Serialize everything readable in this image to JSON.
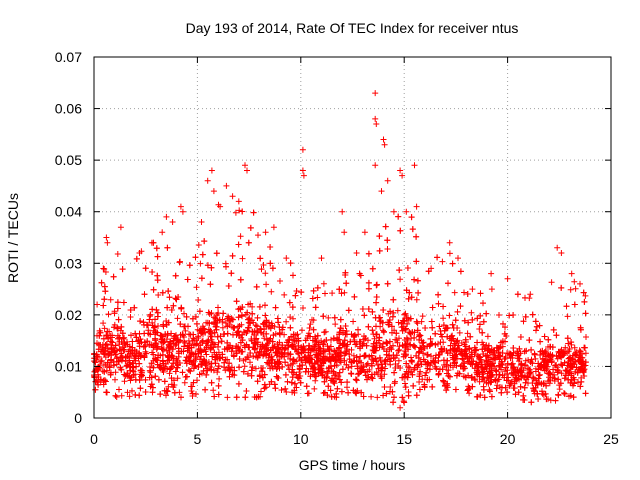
{
  "chart_data": {
    "type": "scatter",
    "title": "Day 193 of 2014, Rate Of TEC Index for receiver ntus",
    "xlabel": "GPS time / hours",
    "ylabel": "ROTI / TECUs",
    "xlim": [
      0,
      25
    ],
    "ylim": [
      0,
      0.07
    ],
    "x_ticks": [
      0,
      5,
      10,
      15,
      20,
      25
    ],
    "x_tick_labels": [
      "0",
      "5",
      "10",
      "15",
      "20",
      "25"
    ],
    "y_ticks": [
      0,
      0.01,
      0.02,
      0.03,
      0.04,
      0.05,
      0.06,
      0.07
    ],
    "y_tick_labels": [
      "0",
      "0.01",
      "0.02",
      "0.03",
      "0.04",
      "0.05",
      "0.06",
      "0.07"
    ],
    "grid": true,
    "marker": "+",
    "color": "#ff0000",
    "x_range_of_data": [
      0.0,
      23.8
    ],
    "envelope": {
      "x": [
        0,
        0.5,
        1,
        1.5,
        2,
        2.5,
        3,
        3.5,
        4,
        4.5,
        5,
        5.5,
        6,
        6.5,
        7,
        7.5,
        8,
        8.5,
        9,
        9.5,
        10,
        10.5,
        11,
        11.5,
        12,
        12.5,
        13,
        13.5,
        14,
        14.5,
        15,
        15.5,
        16,
        16.5,
        17,
        17.5,
        18,
        18.5,
        19,
        19.5,
        20,
        20.5,
        21,
        21.5,
        22,
        22.5,
        23,
        23.5,
        23.8
      ],
      "low": [
        0.005,
        0.005,
        0.004,
        0.004,
        0.004,
        0.005,
        0.005,
        0.004,
        0.004,
        0.004,
        0.004,
        0.004,
        0.004,
        0.004,
        0.004,
        0.004,
        0.004,
        0.005,
        0.005,
        0.005,
        0.004,
        0.005,
        0.005,
        0.004,
        0.003,
        0.004,
        0.004,
        0.004,
        0.003,
        0.003,
        0.002,
        0.004,
        0.004,
        0.005,
        0.005,
        0.005,
        0.005,
        0.004,
        0.004,
        0.004,
        0.004,
        0.004,
        0.003,
        0.003,
        0.003,
        0.003,
        0.004,
        0.004,
        0.004
      ],
      "high": [
        0.022,
        0.03,
        0.033,
        0.03,
        0.031,
        0.034,
        0.034,
        0.036,
        0.037,
        0.034,
        0.035,
        0.04,
        0.042,
        0.039,
        0.041,
        0.045,
        0.036,
        0.034,
        0.032,
        0.031,
        0.034,
        0.03,
        0.028,
        0.028,
        0.034,
        0.033,
        0.03,
        0.034,
        0.042,
        0.038,
        0.044,
        0.038,
        0.03,
        0.031,
        0.034,
        0.031,
        0.027,
        0.026,
        0.025,
        0.026,
        0.026,
        0.025,
        0.024,
        0.024,
        0.026,
        0.031,
        0.027,
        0.026,
        0.026
      ]
    },
    "spikes": [
      {
        "x": 0.15,
        "y": 0.022
      },
      {
        "x": 0.6,
        "y": 0.035
      },
      {
        "x": 0.65,
        "y": 0.034
      },
      {
        "x": 1.3,
        "y": 0.037
      },
      {
        "x": 2.2,
        "y": 0.032
      },
      {
        "x": 2.8,
        "y": 0.034
      },
      {
        "x": 3.3,
        "y": 0.036
      },
      {
        "x": 3.5,
        "y": 0.039
      },
      {
        "x": 3.8,
        "y": 0.038
      },
      {
        "x": 4.2,
        "y": 0.041
      },
      {
        "x": 4.3,
        "y": 0.04
      },
      {
        "x": 5.2,
        "y": 0.038
      },
      {
        "x": 5.5,
        "y": 0.046
      },
      {
        "x": 5.7,
        "y": 0.048
      },
      {
        "x": 5.8,
        "y": 0.044
      },
      {
        "x": 6.1,
        "y": 0.041
      },
      {
        "x": 6.4,
        "y": 0.045
      },
      {
        "x": 6.7,
        "y": 0.043
      },
      {
        "x": 7.0,
        "y": 0.042
      },
      {
        "x": 7.3,
        "y": 0.049
      },
      {
        "x": 7.4,
        "y": 0.048
      },
      {
        "x": 8.3,
        "y": 0.036
      },
      {
        "x": 8.7,
        "y": 0.037
      },
      {
        "x": 9.3,
        "y": 0.031
      },
      {
        "x": 10.1,
        "y": 0.052
      },
      {
        "x": 10.1,
        "y": 0.048
      },
      {
        "x": 10.15,
        "y": 0.047
      },
      {
        "x": 11.0,
        "y": 0.031
      },
      {
        "x": 12.0,
        "y": 0.04
      },
      {
        "x": 12.1,
        "y": 0.036
      },
      {
        "x": 12.7,
        "y": 0.032
      },
      {
        "x": 13.1,
        "y": 0.036
      },
      {
        "x": 13.6,
        "y": 0.063
      },
      {
        "x": 13.6,
        "y": 0.058
      },
      {
        "x": 13.65,
        "y": 0.057
      },
      {
        "x": 13.6,
        "y": 0.049
      },
      {
        "x": 13.9,
        "y": 0.044
      },
      {
        "x": 14.0,
        "y": 0.054
      },
      {
        "x": 14.05,
        "y": 0.053
      },
      {
        "x": 14.2,
        "y": 0.046
      },
      {
        "x": 14.5,
        "y": 0.04
      },
      {
        "x": 14.8,
        "y": 0.048
      },
      {
        "x": 14.9,
        "y": 0.047
      },
      {
        "x": 15.1,
        "y": 0.04
      },
      {
        "x": 15.5,
        "y": 0.049
      },
      {
        "x": 15.6,
        "y": 0.041
      },
      {
        "x": 16.3,
        "y": 0.029
      },
      {
        "x": 17.2,
        "y": 0.034
      },
      {
        "x": 17.6,
        "y": 0.031
      },
      {
        "x": 18.3,
        "y": 0.025
      },
      {
        "x": 19.2,
        "y": 0.028
      },
      {
        "x": 20.0,
        "y": 0.027
      },
      {
        "x": 21.1,
        "y": 0.024
      },
      {
        "x": 22.4,
        "y": 0.033
      },
      {
        "x": 22.6,
        "y": 0.032
      },
      {
        "x": 23.1,
        "y": 0.028
      },
      {
        "x": 23.5,
        "y": 0.026
      },
      {
        "x": 14.8,
        "y": 0.002
      },
      {
        "x": 15.0,
        "y": 0.003
      },
      {
        "x": 13.7,
        "y": 0.004
      }
    ]
  }
}
